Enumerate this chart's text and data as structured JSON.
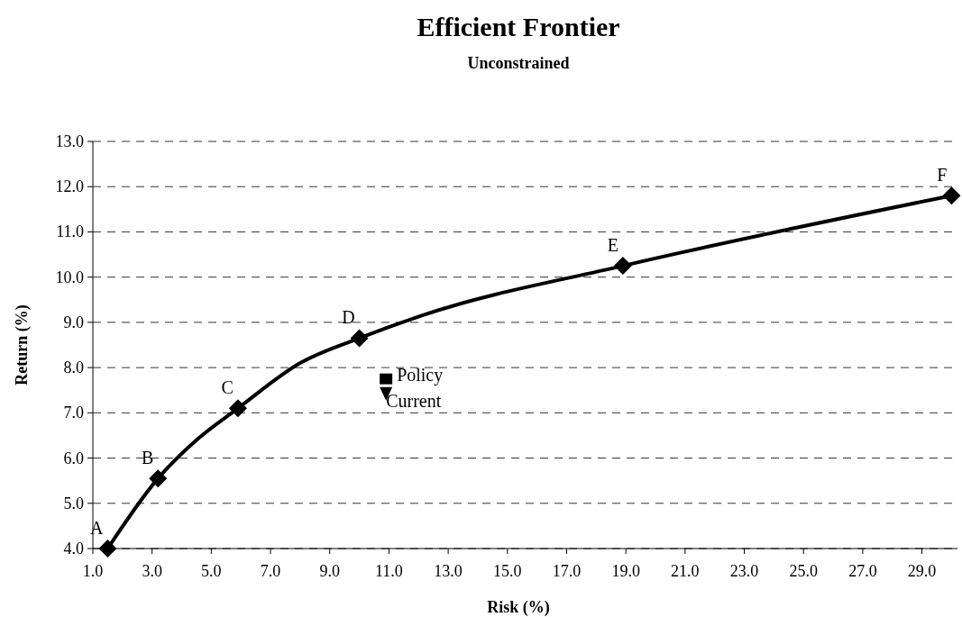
{
  "chart_data": {
    "type": "line",
    "title": "Efficient Frontier",
    "subtitle": "Unconstrained",
    "xlabel": "Risk (%)",
    "ylabel": "Return (%)",
    "xlim": [
      1,
      30.2
    ],
    "xticks": [
      {
        "value": 1,
        "label": "1.0"
      },
      {
        "value": 3,
        "label": "3.0"
      },
      {
        "value": 5,
        "label": "5.0"
      },
      {
        "value": 7,
        "label": "7.0"
      },
      {
        "value": 9,
        "label": "9.0"
      },
      {
        "value": 11,
        "label": "11.0"
      },
      {
        "value": 13,
        "label": "13.0"
      },
      {
        "value": 15,
        "label": "15.0"
      },
      {
        "value": 17,
        "label": "17.0"
      },
      {
        "value": 19,
        "label": "19.0"
      },
      {
        "value": 21,
        "label": "21.0"
      },
      {
        "value": 23,
        "label": "23.0"
      },
      {
        "value": 25,
        "label": "25.0"
      },
      {
        "value": 27,
        "label": "27.0"
      },
      {
        "value": 29,
        "label": "29.0"
      }
    ],
    "ylim": [
      4,
      13
    ],
    "yticks": [
      {
        "value": 4,
        "label": "4.0"
      },
      {
        "value": 5,
        "label": "5.0"
      },
      {
        "value": 6,
        "label": "6.0"
      },
      {
        "value": 7,
        "label": "7.0"
      },
      {
        "value": 8,
        "label": "8.0"
      },
      {
        "value": 9,
        "label": "9.0"
      },
      {
        "value": 10,
        "label": "10.0"
      },
      {
        "value": 11,
        "label": "11.0"
      },
      {
        "value": 12,
        "label": "12.0"
      },
      {
        "value": 13,
        "label": "13.0"
      }
    ],
    "grid": "y",
    "series": [
      {
        "color": "#000000",
        "marker": "none",
        "x": [
          1.5,
          3.2,
          4.5,
          5.9,
          8.0,
          10.0,
          12.1,
          18.9,
          30.0
        ],
        "values": [
          4.0,
          5.55,
          6.4,
          7.1,
          8.1,
          8.65,
          9.15,
          10.25,
          11.8
        ]
      },
      {
        "type": "scatter",
        "color": "#000000",
        "marker": "diamond",
        "x": [
          1.5,
          3.2,
          5.9,
          10.0,
          18.9,
          30.0
        ],
        "values": [
          4.0,
          5.55,
          7.1,
          8.65,
          10.25,
          11.8
        ]
      },
      {
        "type": "scatter",
        "name": "Policy",
        "color": "#000000",
        "marker": "square",
        "x": [
          10.9
        ],
        "values": [
          7.75
        ]
      },
      {
        "type": "scatter",
        "name": "Current",
        "color": "#000000",
        "marker": "triangle",
        "x": [
          10.9
        ],
        "values": [
          7.45
        ]
      }
    ],
    "annotations": [
      {
        "text": "A",
        "x": 1.5,
        "y": 4.0
      },
      {
        "text": "B",
        "x": 3.2,
        "y": 5.55
      },
      {
        "text": "C",
        "x": 5.9,
        "y": 7.1
      },
      {
        "text": "D",
        "x": 10.0,
        "y": 8.65
      },
      {
        "text": "E",
        "x": 18.9,
        "y": 10.25
      },
      {
        "text": "F",
        "x": 30.0,
        "y": 11.8
      }
    ]
  }
}
